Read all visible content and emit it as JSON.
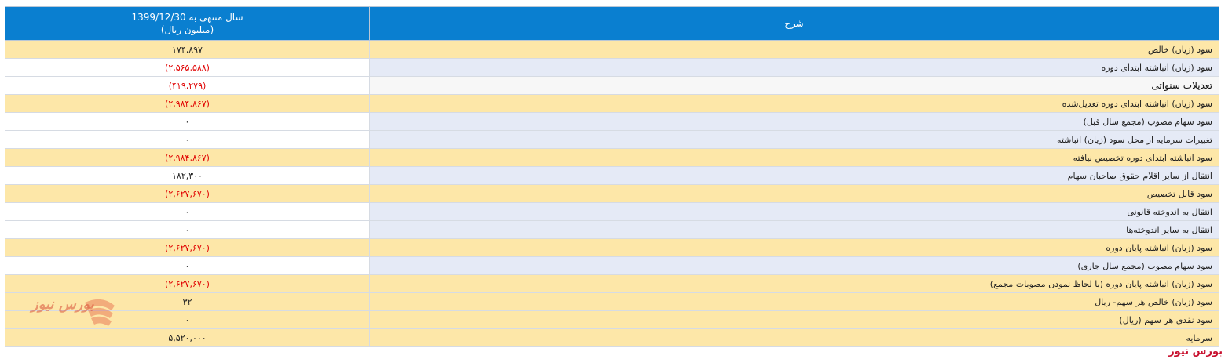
{
  "header": {
    "value_line1": "سال منتهی به 1399/12/30",
    "value_line2": "(میلیون ریال)",
    "description": "شرح"
  },
  "rows": [
    {
      "desc": "سود (زیان) خالص",
      "value": "۱۷۴,۸۹۷"
    },
    {
      "desc": "سود (زیان) انباشته ابتدای دوره",
      "value": "(۲,۵۶۵,۵۸۸)"
    },
    {
      "desc": "تعدیلات سنواتی",
      "value": "(۴۱۹,۲۷۹)"
    },
    {
      "desc": "سود (زیان) انباشته ابتدای دوره تعدیل‌شده",
      "value": "(۲,۹۸۴,۸۶۷)"
    },
    {
      "desc": "سود سهام مصوب (مجمع سال قبل)",
      "value": "۰"
    },
    {
      "desc": "تغییرات سرمایه از محل سود (زیان) انباشته",
      "value": "۰"
    },
    {
      "desc": "سود انباشته ابتدای دوره تخصیص نیافته",
      "value": "(۲,۹۸۴,۸۶۷)"
    },
    {
      "desc": "انتقال از سایر اقلام حقوق صاحبان سهام",
      "value": "۱۸۲,۳۰۰"
    },
    {
      "desc": "سود قابل تخصیص",
      "value": "(۲,۶۲۷,۶۷۰)"
    },
    {
      "desc": "انتقال به اندوخته قانونی",
      "value": "۰"
    },
    {
      "desc": "انتقال به سایر اندوخته‌ها",
      "value": "۰"
    },
    {
      "desc": "سود (زیان) انباشته پایان دوره",
      "value": "(۲,۶۲۷,۶۷۰)"
    },
    {
      "desc": "سود سهام مصوب (مجمع سال جاری)",
      "value": "۰"
    },
    {
      "desc": "سود (زیان) انباشته پایان دوره (با لحاظ نمودن مصوبات مجمع)",
      "value": "(۲,۶۲۷,۶۷۰)"
    },
    {
      "desc": "سود (زیان) خالص هر سهم- ریال",
      "value": "۳۲"
    },
    {
      "desc": "سود نقدی هر سهم (ریال)",
      "value": "۰"
    },
    {
      "desc": "سرمایه",
      "value": "۵,۵۲۰,۰۰۰"
    }
  ],
  "watermark": {
    "text": "بورس نیوز"
  },
  "footer": {
    "brand": "بورس نیوز"
  }
}
